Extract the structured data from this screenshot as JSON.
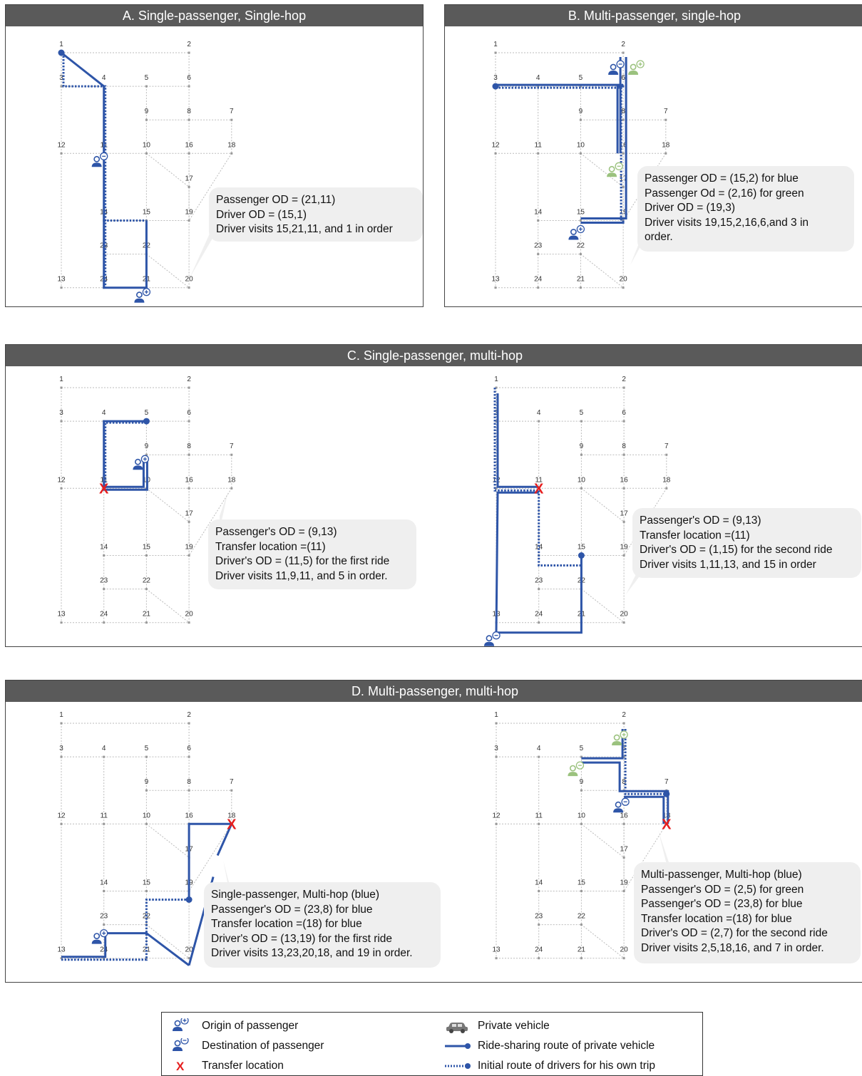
{
  "colors": {
    "blue": "#2e55a8",
    "green": "#9bc27e",
    "red": "#e61e1e",
    "grid": "#bbbbbb",
    "node": "#999999"
  },
  "node_labels": {
    "n1": "1",
    "n2": "2",
    "n3": "3",
    "n4": "4",
    "n5": "5",
    "n6": "6",
    "n7": "7",
    "n8": "8",
    "n9": "9",
    "n10": "10",
    "n11": "11",
    "n12": "12",
    "n13": "13",
    "n14": "14",
    "n15": "15",
    "n16": "16",
    "n17": "17",
    "n18": "18",
    "n19": "19",
    "n20": "20",
    "n21": "21",
    "n22": "22",
    "n23": "23",
    "n24": "24"
  },
  "panels": {
    "A": {
      "title": "A. Single-passenger, Single-hop",
      "callout": [
        "Passenger OD = (21,11)",
        "Driver OD = (15,1)",
        "Driver visits 15,21,11, and 1 in order"
      ]
    },
    "B": {
      "title": "B. Multi-passenger, single-hop",
      "callout": [
        "Passenger  OD = (15,2) for blue",
        "Passenger  Od = (2,16) for green",
        "Driver OD = (19,3)",
        "Driver visits 19,15,2,16,6,and 3 in",
        "order."
      ]
    },
    "C": {
      "title": "C. Single-passenger, multi-hop",
      "callout_left": [
        "Passenger's OD = (9,13)",
        "Transfer location =(11)",
        "Driver's OD = (11,5) for the first ride",
        "Driver visits 11,9,11, and 5 in order."
      ],
      "callout_right": [
        "Passenger's OD = (9,13)",
        "Transfer location =(11)",
        "Driver's OD = (1,15) for the second ride",
        "Driver visits 1,11,13, and 15 in order"
      ]
    },
    "D": {
      "title": "D. Multi-passenger, multi-hop",
      "callout_left": [
        "Single-passenger, Multi-hop (blue)",
        "Passenger's OD = (23,8) for blue",
        "Transfer location =(18) for blue",
        "Driver's OD = (13,19) for the first ride",
        "Driver visits 13,23,20,18, and 19 in order."
      ],
      "callout_right": [
        "Multi-passenger, Multi-hop (blue)",
        "Passenger's OD = (2,5) for green",
        "Passenger's OD = (23,8) for blue",
        "Transfer location =(18) for blue",
        "Driver's OD = (2,7) for the second ride",
        "Driver visits 2,5,18,16, and 7 in order."
      ]
    }
  },
  "legend": {
    "origin": "Origin of passenger",
    "destination": "Destination of passenger",
    "transfer": "Transfer location",
    "vehicle": "Private vehicle",
    "rideshare": "Ride-sharing route of private vehicle",
    "initial": "Initial route of drivers for his own trip"
  }
}
